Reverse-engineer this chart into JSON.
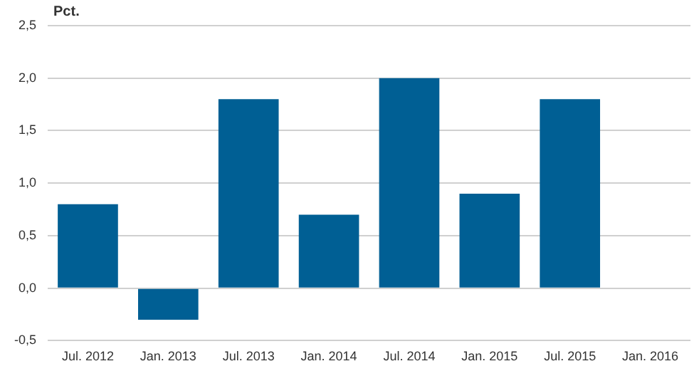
{
  "chart_data": {
    "type": "bar",
    "ylabel": "Pct.",
    "categories": [
      "Jul. 2012",
      "Jan. 2013",
      "Jul. 2013",
      "Jan. 2014",
      "Jul. 2014",
      "Jan. 2015",
      "Jul. 2015",
      "Jan. 2016"
    ],
    "values": [
      0.8,
      -0.3,
      1.8,
      0.7,
      2.0,
      0.9,
      1.8,
      0
    ],
    "color": "#005f94",
    "ylim": [
      -0.5,
      2.5
    ],
    "yticks": [
      {
        "value": -0.5,
        "label": "-0,5"
      },
      {
        "value": 0,
        "label": "0,0"
      },
      {
        "value": 0.5,
        "label": "0,5"
      },
      {
        "value": 1,
        "label": "1,0"
      },
      {
        "value": 1.5,
        "label": "1,5"
      },
      {
        "value": 2,
        "label": "2,0"
      },
      {
        "value": 2.5,
        "label": "2,5"
      }
    ],
    "grid": "y"
  }
}
